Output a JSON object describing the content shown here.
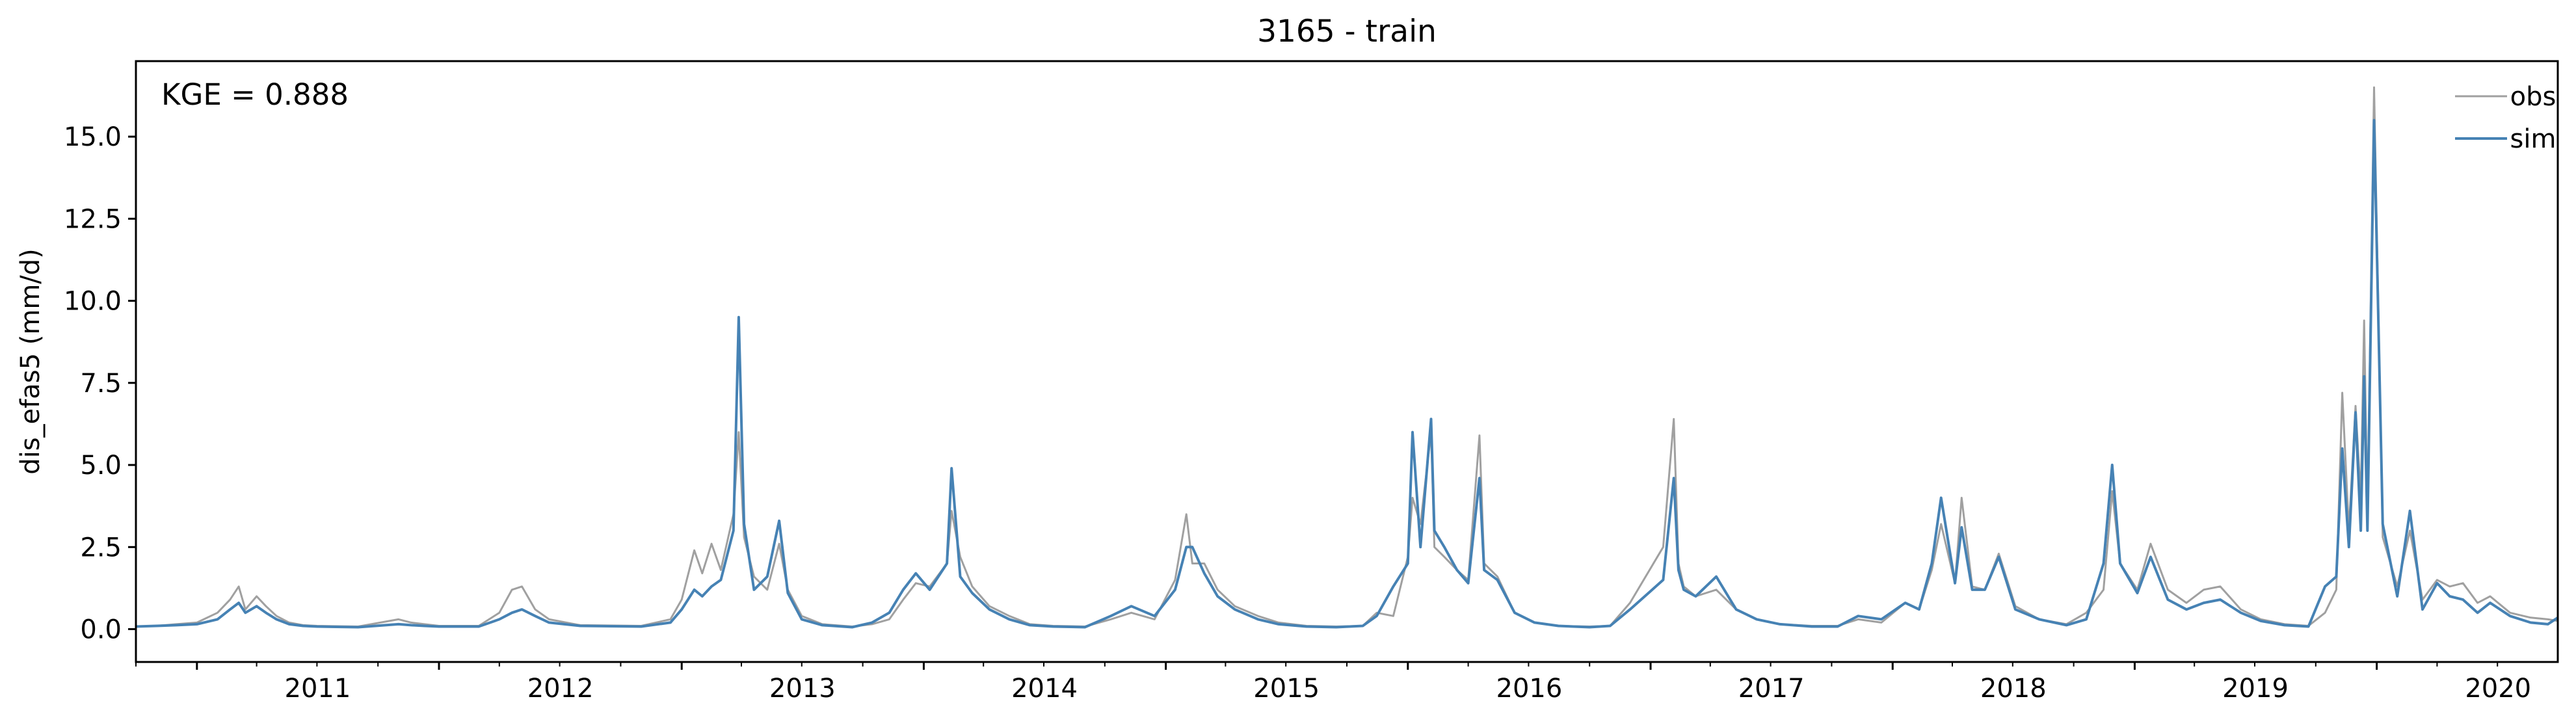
{
  "chart_data": {
    "type": "line",
    "title": "3165 - train",
    "xlabel": "",
    "ylabel": "dis_efas5 (mm/d)",
    "annotation": "KGE = 0.888",
    "xlim": [
      "2010-10-01",
      "2020-09-30"
    ],
    "ylim": [
      -1.0,
      17.3
    ],
    "x_ticks": [
      "2011",
      "2012",
      "2013",
      "2014",
      "2015",
      "2016",
      "2017",
      "2018",
      "2019",
      "2020"
    ],
    "y_ticks": [
      "0.0",
      "2.5",
      "5.0",
      "7.5",
      "10.0",
      "12.5",
      "15.0"
    ],
    "grid": false,
    "legend": {
      "placement": "top-right",
      "entries": [
        "obs",
        "sim"
      ]
    },
    "colors": {
      "obs": "#a0a0a0",
      "sim": "#4682b4"
    },
    "series": [
      {
        "name": "obs",
        "x": [
          "2010-10-01",
          "2010-11-01",
          "2010-12-01",
          "2011-01-01",
          "2011-02-01",
          "2011-02-20",
          "2011-03-05",
          "2011-03-15",
          "2011-04-01",
          "2011-04-15",
          "2011-05-01",
          "2011-05-20",
          "2011-06-10",
          "2011-07-01",
          "2011-09-01",
          "2011-11-01",
          "2011-11-20",
          "2011-12-10",
          "2012-01-01",
          "2012-03-01",
          "2012-04-01",
          "2012-04-20",
          "2012-05-05",
          "2012-05-25",
          "2012-06-15",
          "2012-08-01",
          "2012-11-01",
          "2012-12-15",
          "2013-01-01",
          "2013-01-20",
          "2013-02-01",
          "2013-02-15",
          "2013-03-01",
          "2013-03-20",
          "2013-03-28",
          "2013-04-05",
          "2013-04-20",
          "2013-05-10",
          "2013-05-28",
          "2013-06-10",
          "2013-07-01",
          "2013-08-01",
          "2013-09-15",
          "2013-10-15",
          "2013-11-10",
          "2013-12-01",
          "2013-12-20",
          "2014-01-10",
          "2014-02-05",
          "2014-02-12",
          "2014-02-25",
          "2014-03-15",
          "2014-04-10",
          "2014-05-10",
          "2014-06-10",
          "2014-07-15",
          "2014-09-01",
          "2014-10-10",
          "2014-11-10",
          "2014-12-15",
          "2015-01-15",
          "2015-02-01",
          "2015-02-10",
          "2015-02-28",
          "2015-03-20",
          "2015-04-15",
          "2015-05-20",
          "2015-06-20",
          "2015-08-01",
          "2015-09-15",
          "2015-10-25",
          "2015-11-15",
          "2015-12-10",
          "2016-01-01",
          "2016-01-08",
          "2016-01-20",
          "2016-02-05",
          "2016-02-10",
          "2016-02-25",
          "2016-03-15",
          "2016-04-01",
          "2016-04-18",
          "2016-04-25",
          "2016-05-15",
          "2016-06-10",
          "2016-07-10",
          "2016-08-15",
          "2016-10-01",
          "2016-11-01",
          "2016-12-01",
          "2017-01-20",
          "2017-02-05",
          "2017-02-12",
          "2017-02-20",
          "2017-03-10",
          "2017-04-10",
          "2017-05-10",
          "2017-06-10",
          "2017-07-15",
          "2017-09-01",
          "2017-10-10",
          "2017-11-10",
          "2017-12-15",
          "2018-01-20",
          "2018-02-10",
          "2018-03-01",
          "2018-03-15",
          "2018-04-05",
          "2018-04-15",
          "2018-05-01",
          "2018-05-20",
          "2018-06-10",
          "2018-07-05",
          "2018-08-10",
          "2018-09-20",
          "2018-10-20",
          "2018-11-15",
          "2018-11-28",
          "2018-12-10",
          "2019-01-05",
          "2019-01-25",
          "2019-02-20",
          "2019-03-20",
          "2019-04-15",
          "2019-05-10",
          "2019-06-10",
          "2019-07-10",
          "2019-08-15",
          "2019-09-20",
          "2019-10-15",
          "2019-11-01",
          "2019-11-10",
          "2019-11-20",
          "2019-11-30",
          "2019-12-08",
          "2019-12-13",
          "2019-12-18",
          "2019-12-28",
          "2020-01-10",
          "2020-02-01",
          "2020-02-20",
          "2020-03-10",
          "2020-04-01",
          "2020-04-20",
          "2020-05-10",
          "2020-06-01",
          "2020-06-20",
          "2020-07-20",
          "2020-08-20",
          "2020-09-15",
          "2020-09-30"
        ],
        "y": [
          0.08,
          0.1,
          0.15,
          0.2,
          0.5,
          0.9,
          1.3,
          0.6,
          1.0,
          0.7,
          0.4,
          0.2,
          0.12,
          0.1,
          0.08,
          0.3,
          0.2,
          0.15,
          0.1,
          0.1,
          0.5,
          1.2,
          1.3,
          0.6,
          0.3,
          0.12,
          0.1,
          0.3,
          0.9,
          2.4,
          1.7,
          2.6,
          1.8,
          3.5,
          6.0,
          2.8,
          1.6,
          1.2,
          2.6,
          1.2,
          0.4,
          0.15,
          0.08,
          0.15,
          0.3,
          0.9,
          1.4,
          1.3,
          2.0,
          3.6,
          2.2,
          1.3,
          0.7,
          0.4,
          0.15,
          0.1,
          0.08,
          0.3,
          0.5,
          0.3,
          1.5,
          3.5,
          2.0,
          2.0,
          1.2,
          0.7,
          0.4,
          0.2,
          0.1,
          0.08,
          0.1,
          0.5,
          0.4,
          2.2,
          4.0,
          3.2,
          6.0,
          2.5,
          2.2,
          1.8,
          1.5,
          5.9,
          2.0,
          1.6,
          0.5,
          0.2,
          0.1,
          0.08,
          0.1,
          0.8,
          2.5,
          6.4,
          2.0,
          1.3,
          1.0,
          1.2,
          0.6,
          0.3,
          0.15,
          0.1,
          0.1,
          0.3,
          0.2,
          0.8,
          0.6,
          1.8,
          3.2,
          1.4,
          4.0,
          1.3,
          1.2,
          2.3,
          0.7,
          0.3,
          0.15,
          0.5,
          1.2,
          4.2,
          2.0,
          1.2,
          2.6,
          1.2,
          0.8,
          1.2,
          1.3,
          0.6,
          0.3,
          0.15,
          0.1,
          0.5,
          1.2,
          7.2,
          3.0,
          6.8,
          4.0,
          9.4,
          3.5,
          16.5,
          2.8,
          1.3,
          3.0,
          0.9,
          1.5,
          1.3,
          1.4,
          0.8,
          1.0,
          0.5,
          0.35,
          0.3,
          0.25
        ]
      },
      {
        "name": "sim",
        "x": [
          "2010-10-01",
          "2010-11-01",
          "2010-12-01",
          "2011-01-01",
          "2011-02-01",
          "2011-02-20",
          "2011-03-05",
          "2011-03-15",
          "2011-04-01",
          "2011-04-15",
          "2011-05-01",
          "2011-05-20",
          "2011-06-10",
          "2011-07-01",
          "2011-09-01",
          "2011-11-01",
          "2011-11-20",
          "2011-12-10",
          "2012-01-01",
          "2012-03-01",
          "2012-04-01",
          "2012-04-20",
          "2012-05-05",
          "2012-05-25",
          "2012-06-15",
          "2012-08-01",
          "2012-11-01",
          "2012-12-15",
          "2013-01-01",
          "2013-01-20",
          "2013-02-01",
          "2013-02-15",
          "2013-03-01",
          "2013-03-20",
          "2013-03-28",
          "2013-04-05",
          "2013-04-20",
          "2013-05-10",
          "2013-05-28",
          "2013-06-10",
          "2013-07-01",
          "2013-08-01",
          "2013-09-15",
          "2013-10-15",
          "2013-11-10",
          "2013-12-01",
          "2013-12-20",
          "2014-01-10",
          "2014-02-05",
          "2014-02-12",
          "2014-02-25",
          "2014-03-15",
          "2014-04-10",
          "2014-05-10",
          "2014-06-10",
          "2014-07-15",
          "2014-09-01",
          "2014-10-10",
          "2014-11-10",
          "2014-12-15",
          "2015-01-15",
          "2015-02-01",
          "2015-02-10",
          "2015-02-28",
          "2015-03-20",
          "2015-04-15",
          "2015-05-20",
          "2015-06-20",
          "2015-08-01",
          "2015-09-15",
          "2015-10-25",
          "2015-11-15",
          "2015-12-10",
          "2016-01-01",
          "2016-01-08",
          "2016-01-20",
          "2016-02-05",
          "2016-02-10",
          "2016-02-25",
          "2016-03-15",
          "2016-04-01",
          "2016-04-18",
          "2016-04-25",
          "2016-05-15",
          "2016-06-10",
          "2016-07-10",
          "2016-08-15",
          "2016-10-01",
          "2016-11-01",
          "2016-12-01",
          "2017-01-20",
          "2017-02-05",
          "2017-02-12",
          "2017-02-20",
          "2017-03-10",
          "2017-04-10",
          "2017-05-10",
          "2017-06-10",
          "2017-07-15",
          "2017-09-01",
          "2017-10-10",
          "2017-11-10",
          "2017-12-15",
          "2018-01-20",
          "2018-02-10",
          "2018-03-01",
          "2018-03-15",
          "2018-04-05",
          "2018-04-15",
          "2018-05-01",
          "2018-05-20",
          "2018-06-10",
          "2018-07-05",
          "2018-08-10",
          "2018-09-20",
          "2018-10-20",
          "2018-11-15",
          "2018-11-28",
          "2018-12-10",
          "2019-01-05",
          "2019-01-25",
          "2019-02-20",
          "2019-03-20",
          "2019-04-15",
          "2019-05-10",
          "2019-06-10",
          "2019-07-10",
          "2019-08-15",
          "2019-09-20",
          "2019-10-15",
          "2019-11-01",
          "2019-11-10",
          "2019-11-20",
          "2019-11-30",
          "2019-12-08",
          "2019-12-13",
          "2019-12-18",
          "2019-12-28",
          "2020-01-10",
          "2020-02-01",
          "2020-02-20",
          "2020-03-10",
          "2020-04-01",
          "2020-04-20",
          "2020-05-10",
          "2020-06-01",
          "2020-06-20",
          "2020-07-20",
          "2020-08-20",
          "2020-09-15",
          "2020-09-30"
        ],
        "y": [
          0.08,
          0.1,
          0.12,
          0.15,
          0.3,
          0.6,
          0.8,
          0.5,
          0.7,
          0.5,
          0.3,
          0.15,
          0.1,
          0.08,
          0.06,
          0.15,
          0.12,
          0.1,
          0.08,
          0.08,
          0.3,
          0.5,
          0.6,
          0.4,
          0.2,
          0.1,
          0.08,
          0.2,
          0.6,
          1.2,
          1.0,
          1.3,
          1.5,
          3.0,
          9.5,
          3.2,
          1.2,
          1.6,
          3.3,
          1.1,
          0.3,
          0.12,
          0.06,
          0.2,
          0.5,
          1.2,
          1.7,
          1.2,
          2.0,
          4.9,
          1.6,
          1.1,
          0.6,
          0.3,
          0.12,
          0.08,
          0.06,
          0.4,
          0.7,
          0.4,
          1.2,
          2.5,
          2.5,
          1.7,
          1.0,
          0.6,
          0.3,
          0.15,
          0.08,
          0.06,
          0.1,
          0.4,
          1.3,
          2.0,
          6.0,
          2.5,
          6.4,
          3.0,
          2.5,
          1.8,
          1.4,
          4.6,
          1.8,
          1.5,
          0.5,
          0.2,
          0.1,
          0.06,
          0.1,
          0.6,
          1.5,
          4.6,
          1.8,
          1.2,
          1.0,
          1.6,
          0.6,
          0.3,
          0.15,
          0.08,
          0.08,
          0.4,
          0.3,
          0.8,
          0.6,
          2.0,
          4.0,
          1.4,
          3.1,
          1.2,
          1.2,
          2.2,
          0.6,
          0.3,
          0.12,
          0.3,
          2.0,
          5.0,
          2.0,
          1.1,
          2.2,
          0.9,
          0.6,
          0.8,
          0.9,
          0.5,
          0.25,
          0.12,
          0.08,
          1.3,
          1.6,
          5.5,
          2.5,
          6.6,
          3.0,
          7.7,
          3.0,
          15.5,
          3.2,
          1.0,
          3.6,
          0.6,
          1.4,
          1.0,
          0.9,
          0.5,
          0.8,
          0.4,
          0.2,
          0.15,
          0.35
        ]
      }
    ]
  }
}
